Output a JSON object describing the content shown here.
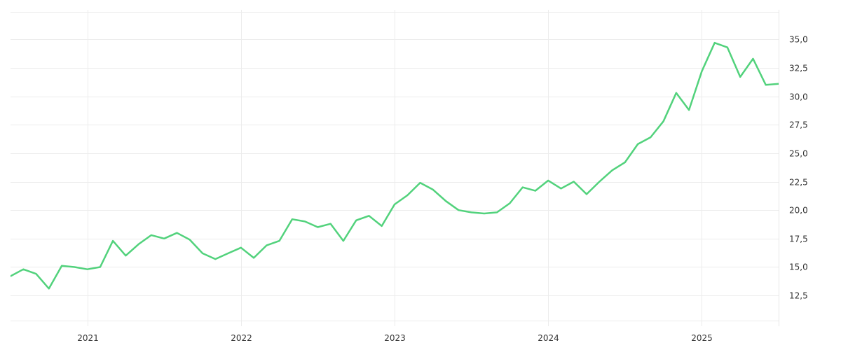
{
  "chart_data": {
    "type": "line",
    "title": "",
    "xlabel": "",
    "ylabel": "",
    "x_tick_labels": [
      "2021",
      "2022",
      "2023",
      "2024",
      "2025"
    ],
    "y_tick_labels": [
      "12,5",
      "15,0",
      "17,5",
      "20,0",
      "22,5",
      "25,0",
      "27,5",
      "30,0",
      "32,5",
      "35,0"
    ],
    "y_ticks": [
      12.5,
      15.0,
      17.5,
      20.0,
      22.5,
      25.0,
      27.5,
      30.0,
      32.5,
      35.0
    ],
    "xlim": [
      "2020-07",
      "2025-06"
    ],
    "ylim": [
      9.8,
      37.6
    ],
    "y_axis_side": "right",
    "grid": true,
    "legend": "none",
    "colors": {
      "line": "#52d27c",
      "grid": "#ececec",
      "text": "#333333"
    },
    "series": [
      {
        "x": [
          "2020-07",
          "2020-08",
          "2020-09",
          "2020-10",
          "2020-11",
          "2020-12",
          "2021-01",
          "2021-02",
          "2021-03",
          "2021-04",
          "2021-05",
          "2021-06",
          "2021-07",
          "2021-08",
          "2021-09",
          "2021-10",
          "2021-11",
          "2021-12",
          "2022-01",
          "2022-02",
          "2022-03",
          "2022-04",
          "2022-05",
          "2022-06",
          "2022-07",
          "2022-08",
          "2022-09",
          "2022-10",
          "2022-11",
          "2022-12",
          "2023-01",
          "2023-02",
          "2023-03",
          "2023-04",
          "2023-05",
          "2023-06",
          "2023-07",
          "2023-08",
          "2023-09",
          "2023-10",
          "2023-11",
          "2023-12",
          "2024-01",
          "2024-02",
          "2024-03",
          "2024-04",
          "2024-05",
          "2024-06",
          "2024-07",
          "2024-08",
          "2024-09",
          "2024-10",
          "2024-11",
          "2024-12",
          "2025-01",
          "2025-02",
          "2025-03",
          "2025-04",
          "2025-05",
          "2025-06",
          "2025-07"
        ],
        "values": [
          14.2,
          14.8,
          14.4,
          13.1,
          15.1,
          15.0,
          14.8,
          15.0,
          17.3,
          16.0,
          17.0,
          17.8,
          17.5,
          18.0,
          17.4,
          16.2,
          15.7,
          16.2,
          16.7,
          15.8,
          16.9,
          17.3,
          19.2,
          19.0,
          18.5,
          18.8,
          17.3,
          19.1,
          19.5,
          18.6,
          20.5,
          21.3,
          22.4,
          21.8,
          20.8,
          20.0,
          19.8,
          19.7,
          19.8,
          20.6,
          22.0,
          21.7,
          22.6,
          21.9,
          22.5,
          21.4,
          22.5,
          23.5,
          24.2,
          25.8,
          26.4,
          27.8,
          30.3,
          28.8,
          32.2,
          34.7,
          34.3,
          31.7,
          33.3,
          31.0,
          31.1
        ]
      }
    ]
  }
}
